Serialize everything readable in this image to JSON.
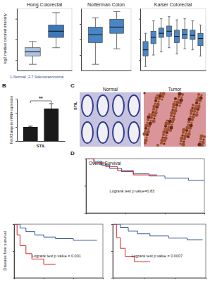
{
  "figure": {
    "panel_labels": [
      "B",
      "C",
      "D"
    ],
    "shared_y_label": "log2 median centred intensity",
    "shared_x_label": "1-Normal ,2-7 Adenocarcinoma",
    "images": {
      "row_label": "STIL",
      "labels": [
        "Normal",
        "Tumor"
      ]
    }
  },
  "chart_data": [
    {
      "type": "box",
      "title": "Hong Colorectal",
      "categories": [
        null,
        null
      ],
      "low": [
        -2.4,
        -0.8
      ],
      "q1": [
        -1.6,
        0.2
      ],
      "median": [
        -1.2,
        0.8
      ],
      "q3": [
        -0.8,
        1.4
      ],
      "high": [
        -0.2,
        2.6
      ],
      "colors": [
        "#aac4e2",
        "#3d78b8"
      ],
      "ylim": [
        -3,
        3
      ],
      "yticks": [
        -2,
        0,
        2
      ],
      "tick_labels": false
    },
    {
      "type": "box",
      "title": "Notterman Colon",
      "categories": [
        null,
        null
      ],
      "low": [
        -1.6,
        -0.6
      ],
      "q1": [
        -0.2,
        0.4
      ],
      "median": [
        0.3,
        0.8
      ],
      "q3": [
        0.8,
        1.3
      ],
      "high": [
        1.4,
        1.8
      ],
      "colors": [
        "#4a86c5",
        "#4a86c5"
      ],
      "ylim": [
        -2,
        2
      ],
      "yticks": [
        -1,
        0,
        1
      ],
      "tick_labels": false
    },
    {
      "type": "box",
      "title": "Kaiser Colorectal",
      "categories": [
        null,
        null,
        null,
        null,
        null,
        null,
        null,
        null
      ],
      "low": [
        -2.6,
        -1.5,
        -1.2,
        -0.8,
        -1.4,
        -0.9,
        -1.0,
        -1.6
      ],
      "q1": [
        -1.6,
        -0.4,
        0.2,
        0.3,
        -0.3,
        0.1,
        0.0,
        -0.6
      ],
      "median": [
        -1.0,
        0.2,
        0.6,
        0.8,
        0.3,
        0.5,
        0.4,
        0.1
      ],
      "q3": [
        -0.2,
        0.8,
        1.1,
        1.3,
        0.9,
        1.0,
        0.9,
        0.6
      ],
      "high": [
        0.6,
        1.8,
        2.0,
        2.2,
        1.9,
        2.0,
        1.8,
        1.4
      ],
      "colors": [
        "#4a86c5",
        "#4a86c5",
        "#4a86c5",
        "#4a86c5",
        "#4a86c5",
        "#4a86c5",
        "#4a86c5",
        "#4a86c5"
      ],
      "ylim": [
        -3,
        3
      ],
      "yticks": [
        -2,
        0,
        2
      ],
      "tick_labels": false
    },
    {
      "type": "bar",
      "y_label": "Fold Change in mRNA expression",
      "x_label": "STIL",
      "categories": [
        null,
        null
      ],
      "values": [
        1,
        2.3
      ],
      "errors": [
        0.05,
        0.35
      ],
      "color": "#1a1a1a",
      "annotation": "**",
      "ylim": [
        0,
        3
      ],
      "yticks": [
        0,
        1,
        2,
        3
      ],
      "tick_labels": false
    },
    {
      "type": "line",
      "line_style": "step",
      "title": "Overall Survival",
      "annotation": "Logrank test p value=0.83",
      "series": [
        {
          "color": "#2f5597",
          "x": [
            0,
            10,
            20,
            30,
            45,
            60,
            80,
            100,
            130,
            150
          ],
          "values": [
            1,
            0.95,
            0.88,
            0.82,
            0.76,
            0.72,
            0.68,
            0.64,
            0.6,
            0.6
          ]
        },
        {
          "color": "#d62728",
          "x": [
            0,
            10,
            25,
            40,
            60,
            90
          ],
          "values": [
            1,
            0.92,
            0.85,
            0.78,
            0.7,
            0.7
          ]
        }
      ],
      "xlim": [
        0,
        150
      ],
      "ylim": [
        0,
        1
      ],
      "xticks": [
        0,
        50,
        100,
        150
      ],
      "yticks": [
        0,
        0.5,
        1
      ],
      "tick_labels": false
    },
    {
      "type": "line",
      "line_style": "step",
      "y_label": "Disease free survival",
      "annotation": "Logrank test p value = 0.001",
      "series": [
        {
          "color": "#2f5597",
          "x": [
            0,
            10,
            20,
            35,
            50,
            70,
            100,
            140
          ],
          "values": [
            1,
            0.93,
            0.86,
            0.8,
            0.76,
            0.73,
            0.7,
            0.7
          ]
        },
        {
          "color": "#d62728",
          "x": [
            0,
            5,
            10,
            20,
            30,
            50,
            70
          ],
          "values": [
            1,
            0.8,
            0.6,
            0.45,
            0.35,
            0.25,
            0.25
          ]
        }
      ],
      "xlim": [
        0,
        150
      ],
      "ylim": [
        0,
        1
      ],
      "xticks": [
        0,
        50,
        100,
        150
      ],
      "yticks": [
        0,
        0.5,
        1
      ],
      "tick_labels": false
    },
    {
      "type": "line",
      "line_style": "step",
      "annotation": "Logrank test p value = 0.0007",
      "series": [
        {
          "color": "#2f5597",
          "x": [
            0,
            12,
            25,
            40,
            60,
            90,
            120,
            145
          ],
          "values": [
            1,
            0.94,
            0.87,
            0.82,
            0.78,
            0.74,
            0.71,
            0.71
          ]
        },
        {
          "color": "#d62728",
          "x": [
            0,
            6,
            12,
            20,
            35,
            60
          ],
          "values": [
            1,
            0.75,
            0.55,
            0.4,
            0.3,
            0.3
          ]
        }
      ],
      "xlim": [
        0,
        150
      ],
      "ylim": [
        0,
        1
      ],
      "xticks": [
        0,
        50,
        100,
        150
      ],
      "yticks": [
        0,
        0.5,
        1
      ],
      "tick_labels": false
    }
  ]
}
